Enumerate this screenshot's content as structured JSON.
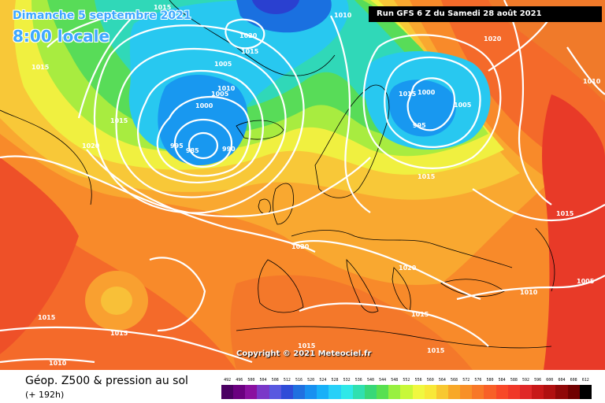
{
  "header": {
    "date_line": "Dimanche 5 septembre 2021",
    "time_line": "8:00 locale",
    "run_info": "Run GFS 6 Z du Samedi 28 août 2021"
  },
  "footer": {
    "title": "Géop. Z500 & pression au sol",
    "range": "(+ 192h)",
    "copyright": "Copyright © 2021 Meteociel.fr"
  },
  "scale": {
    "labels": [
      "492",
      "496",
      "500",
      "504",
      "508",
      "512",
      "516",
      "520",
      "524",
      "528",
      "532",
      "536",
      "540",
      "544",
      "548",
      "552",
      "556",
      "560",
      "564",
      "568",
      "572",
      "576",
      "580",
      "584",
      "588",
      "592",
      "596",
      "600",
      "604",
      "608",
      "612"
    ],
    "colors": [
      "#4b0062",
      "#6b0080",
      "#8a10a0",
      "#7a38c8",
      "#5858e0",
      "#2f4cd8",
      "#2070e0",
      "#1890f0",
      "#18b0f8",
      "#28d0f8",
      "#30e8e8",
      "#30e0b0",
      "#38d878",
      "#58e050",
      "#98f040",
      "#c8f838",
      "#f0f840",
      "#f8e838",
      "#f8c830",
      "#f8a828",
      "#f89028",
      "#f87828",
      "#f86028",
      "#f84828",
      "#f03828",
      "#e02828",
      "#c81818",
      "#b01010",
      "#900808",
      "#700000",
      "#000000"
    ]
  },
  "map": {
    "isobar_labels": [
      {
        "text": "1015"
      },
      {
        "text": "1010"
      },
      {
        "text": "1020"
      },
      {
        "text": "1015"
      },
      {
        "text": "1005"
      },
      {
        "text": "1010"
      },
      {
        "text": "1005"
      },
      {
        "text": "1000"
      },
      {
        "text": "995"
      },
      {
        "text": "985"
      },
      {
        "text": "990"
      },
      {
        "text": "1015"
      },
      {
        "text": "1020"
      },
      {
        "text": "1015"
      },
      {
        "text": "1000"
      },
      {
        "text": "1005"
      },
      {
        "text": "995"
      },
      {
        "text": "1020"
      },
      {
        "text": "1010"
      },
      {
        "text": "1015"
      },
      {
        "text": "1015"
      },
      {
        "text": "1020"
      },
      {
        "text": "1020"
      },
      {
        "text": "1010"
      },
      {
        "text": "1005"
      },
      {
        "text": "1015"
      },
      {
        "text": "1015"
      },
      {
        "text": "1015"
      },
      {
        "text": "1015"
      },
      {
        "text": "1010"
      },
      {
        "text": "1015"
      },
      {
        "text": "1015"
      }
    ]
  }
}
